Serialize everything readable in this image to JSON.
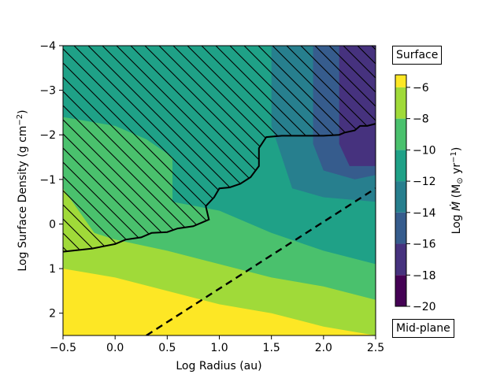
{
  "chart_data": {
    "type": "heatmap",
    "title": "",
    "xlabel": "Log Radius (au)",
    "ylabel_parts": {
      "main": "Log Surface Density (g cm",
      "sup": "−2",
      "end": ")"
    },
    "xlim": [
      -0.5,
      2.5
    ],
    "ylim_top": -4,
    "ylim_bottom": 2.5,
    "y_inverted": true,
    "x_ticks": [
      "−0.5",
      "0.0",
      "0.5",
      "1.0",
      "1.5",
      "2.0",
      "2.5"
    ],
    "x_tick_values": [
      -0.5,
      0.0,
      0.5,
      1.0,
      1.5,
      2.0,
      2.5
    ],
    "y_ticks": [
      "−4",
      "−3",
      "−2",
      "−1",
      "0",
      "1",
      "2"
    ],
    "y_tick_values": [
      -4,
      -3,
      -2,
      -1,
      0,
      1,
      2
    ],
    "colorbar": {
      "label_parts": {
        "pre": "Log ",
        "mdot": "Ṁ",
        "unit": " (M",
        "sun": "⊙",
        "rest": " yr",
        "sup": "−1",
        "end": ")"
      },
      "ticks": [
        "−6",
        "−8",
        "−10",
        "−12",
        "−14",
        "−16",
        "−18",
        "−20"
      ],
      "tick_values": [
        -6,
        -8,
        -10,
        -12,
        -14,
        -16,
        -18,
        -20
      ],
      "range": [
        -20,
        -5.2
      ],
      "levels": [
        -20,
        -19,
        -18,
        -17,
        -16,
        -15,
        -14,
        -13,
        -12,
        -11,
        -10,
        -9,
        -8,
        -7,
        -6,
        -5
      ],
      "colors": [
        "#440154",
        "#46327e",
        "#365c8d",
        "#277f8e",
        "#1fa187",
        "#4ac16d",
        "#a0da39",
        "#fde725"
      ],
      "colors_note": "level bands of 2 dex from -20 to -4 (viridis)"
    },
    "annotations": {
      "top_box": "Surface",
      "bottom_box": "Mid-plane"
    },
    "hatched_boundary": [
      [
        -0.5,
        0.62
      ],
      [
        -0.22,
        0.55
      ],
      [
        0.0,
        0.45
      ],
      [
        0.1,
        0.35
      ],
      [
        0.25,
        0.3
      ],
      [
        0.35,
        0.2
      ],
      [
        0.5,
        0.18
      ],
      [
        0.6,
        0.1
      ],
      [
        0.75,
        0.05
      ],
      [
        0.9,
        -0.1
      ],
      [
        0.87,
        -0.4
      ],
      [
        0.95,
        -0.6
      ],
      [
        1.0,
        -0.8
      ],
      [
        1.1,
        -0.82
      ],
      [
        1.2,
        -0.9
      ],
      [
        1.3,
        -1.05
      ],
      [
        1.38,
        -1.3
      ],
      [
        1.38,
        -1.7
      ],
      [
        1.45,
        -1.95
      ],
      [
        1.6,
        -1.98
      ],
      [
        1.75,
        -1.98
      ],
      [
        2.0,
        -1.98
      ],
      [
        2.15,
        -2.0
      ],
      [
        2.2,
        -2.05
      ],
      [
        2.3,
        -2.1
      ],
      [
        2.35,
        -2.2
      ],
      [
        2.42,
        -2.2
      ],
      [
        2.5,
        -2.25
      ]
    ],
    "dashed_line": [
      [
        0.3,
        2.5
      ],
      [
        2.5,
        -0.8
      ]
    ],
    "field_bands": [
      {
        "level": -6,
        "color": "#fde725",
        "boundary": [
          [
            -0.5,
            1.0
          ],
          [
            0.0,
            1.2
          ],
          [
            0.5,
            1.5
          ],
          [
            1.0,
            1.8
          ],
          [
            1.5,
            2.0
          ],
          [
            2.0,
            2.3
          ],
          [
            2.5,
            2.5
          ]
        ]
      },
      {
        "level": -8,
        "color": "#a0da39",
        "boundary": [
          [
            -0.5,
            -0.8
          ],
          [
            -0.2,
            0.2
          ],
          [
            0.0,
            0.35
          ],
          [
            0.5,
            0.6
          ],
          [
            1.0,
            0.9
          ],
          [
            1.5,
            1.2
          ],
          [
            2.0,
            1.4
          ],
          [
            2.5,
            1.7
          ]
        ]
      },
      {
        "level": -10,
        "color": "#4ac16d",
        "boundary": [
          [
            -0.5,
            -2.4
          ],
          [
            0.0,
            -2.2
          ],
          [
            0.3,
            -1.9
          ],
          [
            0.55,
            -1.5
          ],
          [
            0.55,
            -0.5
          ],
          [
            1.0,
            -0.3
          ],
          [
            1.5,
            0.2
          ],
          [
            2.0,
            0.6
          ],
          [
            2.5,
            0.9
          ]
        ]
      },
      {
        "level": -12,
        "color": "#1fa187",
        "boundary": [
          [
            -0.5,
            -4.0
          ],
          [
            0.5,
            -4.0
          ],
          [
            1.0,
            -3.5
          ],
          [
            1.5,
            -3.2
          ],
          [
            2.0,
            -3.0
          ],
          [
            2.5,
            -2.8
          ]
        ]
      },
      {
        "level": -14,
        "color": "#277f8e",
        "boundary": [
          [
            1.5,
            -2.2
          ],
          [
            1.6,
            -1.5
          ],
          [
            1.7,
            -0.8
          ],
          [
            2.0,
            -0.6
          ],
          [
            2.5,
            -0.5
          ]
        ]
      },
      {
        "level": -16,
        "color": "#365c8d",
        "boundary": [
          [
            1.9,
            -1.8
          ],
          [
            2.0,
            -1.2
          ],
          [
            2.3,
            -1.0
          ],
          [
            2.5,
            -1.1
          ]
        ]
      },
      {
        "level": -18,
        "color": "#46327e",
        "boundary": [
          [
            2.15,
            -1.8
          ],
          [
            2.25,
            -1.3
          ],
          [
            2.5,
            -1.3
          ]
        ]
      }
    ]
  }
}
